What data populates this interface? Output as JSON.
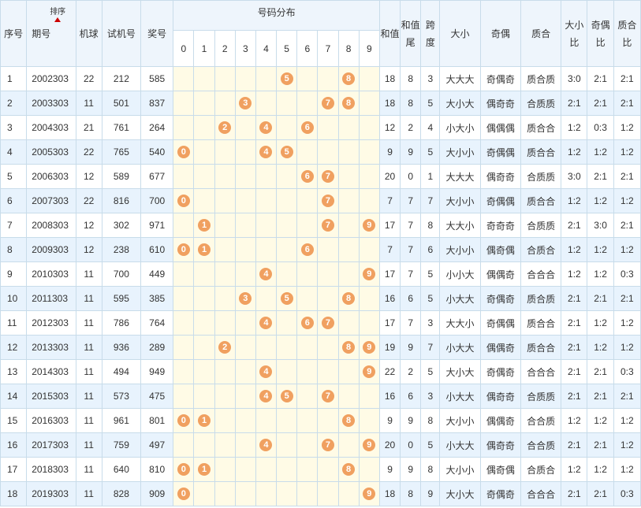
{
  "headers": {
    "seq": "序号",
    "period": "期号",
    "sort": "排序",
    "machine": "机球",
    "test": "试机号",
    "prize": "奖号",
    "dist": "号码分布",
    "digits": [
      "0",
      "1",
      "2",
      "3",
      "4",
      "5",
      "6",
      "7",
      "8",
      "9"
    ],
    "sum": "和值",
    "sum_tail": "和值尾",
    "span": "跨度",
    "big_small": "大小",
    "odd_even": "奇偶",
    "prime": "质合",
    "bs_ratio": "大小比",
    "oe_ratio": "奇偶比",
    "pc_ratio": "质合比"
  },
  "rows": [
    {
      "seq": "1",
      "period": "2002303",
      "machine": "22",
      "test": "212",
      "prize": "585",
      "balls": [
        5,
        8
      ],
      "sum": "18",
      "tail": "8",
      "span": "3",
      "bs": "大大大",
      "oe": "奇偶奇",
      "pc": "质合质",
      "bsr": "3:0",
      "oer": "2:1",
      "pcr": "2:1"
    },
    {
      "seq": "2",
      "period": "2003303",
      "machine": "11",
      "test": "501",
      "prize": "837",
      "balls": [
        3,
        7,
        8
      ],
      "sum": "18",
      "tail": "8",
      "span": "5",
      "bs": "大小大",
      "oe": "偶奇奇",
      "pc": "合质质",
      "bsr": "2:1",
      "oer": "2:1",
      "pcr": "2:1"
    },
    {
      "seq": "3",
      "period": "2004303",
      "machine": "21",
      "test": "761",
      "prize": "264",
      "balls": [
        2,
        4,
        6
      ],
      "sum": "12",
      "tail": "2",
      "span": "4",
      "bs": "小大小",
      "oe": "偶偶偶",
      "pc": "质合合",
      "bsr": "1:2",
      "oer": "0:3",
      "pcr": "1:2"
    },
    {
      "seq": "4",
      "period": "2005303",
      "machine": "22",
      "test": "765",
      "prize": "540",
      "balls": [
        0,
        4,
        5
      ],
      "sum": "9",
      "tail": "9",
      "span": "5",
      "bs": "大小小",
      "oe": "奇偶偶",
      "pc": "质合合",
      "bsr": "1:2",
      "oer": "1:2",
      "pcr": "1:2"
    },
    {
      "seq": "5",
      "period": "2006303",
      "machine": "12",
      "test": "589",
      "prize": "677",
      "balls": [
        6,
        7
      ],
      "sum": "20",
      "tail": "0",
      "span": "1",
      "bs": "大大大",
      "oe": "偶奇奇",
      "pc": "合质质",
      "bsr": "3:0",
      "oer": "2:1",
      "pcr": "2:1"
    },
    {
      "seq": "6",
      "period": "2007303",
      "machine": "22",
      "test": "816",
      "prize": "700",
      "balls": [
        0,
        7
      ],
      "sum": "7",
      "tail": "7",
      "span": "7",
      "bs": "大小小",
      "oe": "奇偶偶",
      "pc": "质合合",
      "bsr": "1:2",
      "oer": "1:2",
      "pcr": "1:2"
    },
    {
      "seq": "7",
      "period": "2008303",
      "machine": "12",
      "test": "302",
      "prize": "971",
      "balls": [
        1,
        7,
        9
      ],
      "sum": "17",
      "tail": "7",
      "span": "8",
      "bs": "大大小",
      "oe": "奇奇奇",
      "pc": "合质质",
      "bsr": "2:1",
      "oer": "3:0",
      "pcr": "2:1"
    },
    {
      "seq": "8",
      "period": "2009303",
      "machine": "12",
      "test": "238",
      "prize": "610",
      "balls": [
        0,
        1,
        6
      ],
      "sum": "7",
      "tail": "7",
      "span": "6",
      "bs": "大小小",
      "oe": "偶奇偶",
      "pc": "合质合",
      "bsr": "1:2",
      "oer": "1:2",
      "pcr": "1:2"
    },
    {
      "seq": "9",
      "period": "2010303",
      "machine": "11",
      "test": "700",
      "prize": "449",
      "balls": [
        4,
        9
      ],
      "sum": "17",
      "tail": "7",
      "span": "5",
      "bs": "小小大",
      "oe": "偶偶奇",
      "pc": "合合合",
      "bsr": "1:2",
      "oer": "1:2",
      "pcr": "0:3"
    },
    {
      "seq": "10",
      "period": "2011303",
      "machine": "11",
      "test": "595",
      "prize": "385",
      "balls": [
        3,
        5,
        8
      ],
      "sum": "16",
      "tail": "6",
      "span": "5",
      "bs": "小大大",
      "oe": "奇偶奇",
      "pc": "质合质",
      "bsr": "2:1",
      "oer": "2:1",
      "pcr": "2:1"
    },
    {
      "seq": "11",
      "period": "2012303",
      "machine": "11",
      "test": "786",
      "prize": "764",
      "balls": [
        4,
        6,
        7
      ],
      "sum": "17",
      "tail": "7",
      "span": "3",
      "bs": "大大小",
      "oe": "奇偶偶",
      "pc": "质合合",
      "bsr": "2:1",
      "oer": "1:2",
      "pcr": "1:2"
    },
    {
      "seq": "12",
      "period": "2013303",
      "machine": "11",
      "test": "936",
      "prize": "289",
      "balls": [
        2,
        8,
        9
      ],
      "sum": "19",
      "tail": "9",
      "span": "7",
      "bs": "小大大",
      "oe": "偶偶奇",
      "pc": "质合合",
      "bsr": "2:1",
      "oer": "1:2",
      "pcr": "1:2"
    },
    {
      "seq": "13",
      "period": "2014303",
      "machine": "11",
      "test": "494",
      "prize": "949",
      "balls": [
        4,
        9
      ],
      "sum": "22",
      "tail": "2",
      "span": "5",
      "bs": "大小大",
      "oe": "奇偶奇",
      "pc": "合合合",
      "bsr": "2:1",
      "oer": "2:1",
      "pcr": "0:3"
    },
    {
      "seq": "14",
      "period": "2015303",
      "machine": "11",
      "test": "573",
      "prize": "475",
      "balls": [
        4,
        5,
        7
      ],
      "sum": "16",
      "tail": "6",
      "span": "3",
      "bs": "小大大",
      "oe": "偶奇奇",
      "pc": "合质质",
      "bsr": "2:1",
      "oer": "2:1",
      "pcr": "2:1"
    },
    {
      "seq": "15",
      "period": "2016303",
      "machine": "11",
      "test": "961",
      "prize": "801",
      "balls": [
        0,
        1,
        8
      ],
      "sum": "9",
      "tail": "9",
      "span": "8",
      "bs": "大小小",
      "oe": "偶偶奇",
      "pc": "合合质",
      "bsr": "1:2",
      "oer": "1:2",
      "pcr": "1:2"
    },
    {
      "seq": "16",
      "period": "2017303",
      "machine": "11",
      "test": "759",
      "prize": "497",
      "balls": [
        4,
        7,
        9
      ],
      "sum": "20",
      "tail": "0",
      "span": "5",
      "bs": "小大大",
      "oe": "偶奇奇",
      "pc": "合合质",
      "bsr": "2:1",
      "oer": "2:1",
      "pcr": "1:2"
    },
    {
      "seq": "17",
      "period": "2018303",
      "machine": "11",
      "test": "640",
      "prize": "810",
      "balls": [
        0,
        1,
        8
      ],
      "sum": "9",
      "tail": "9",
      "span": "8",
      "bs": "大小小",
      "oe": "偶奇偶",
      "pc": "合质合",
      "bsr": "1:2",
      "oer": "1:2",
      "pcr": "1:2"
    },
    {
      "seq": "18",
      "period": "2019303",
      "machine": "11",
      "test": "828",
      "prize": "909",
      "balls": [
        0,
        9
      ],
      "sum": "18",
      "tail": "8",
      "span": "9",
      "bs": "大小大",
      "oe": "奇偶奇",
      "pc": "合合合",
      "bsr": "2:1",
      "oer": "2:1",
      "pcr": "0:3"
    }
  ]
}
